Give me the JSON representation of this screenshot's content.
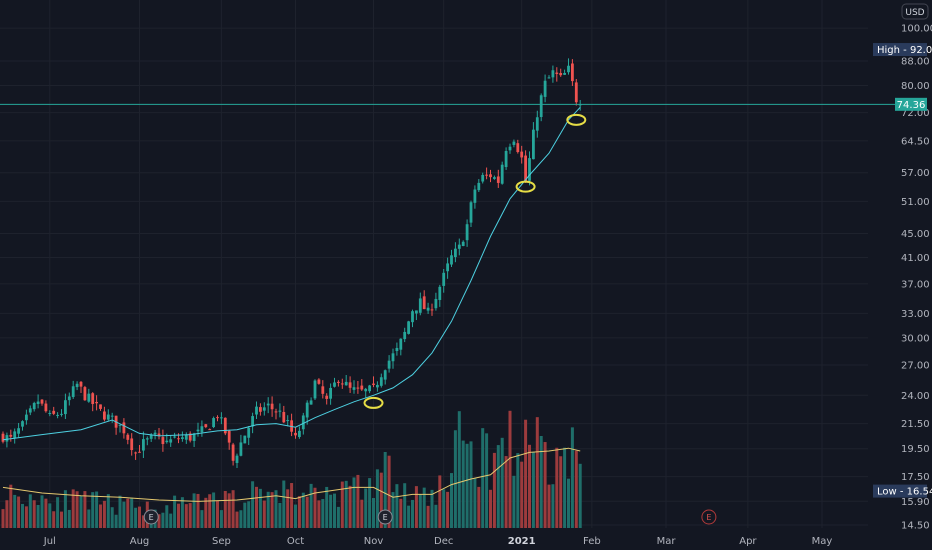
{
  "chart_data": {
    "type": "candlestick",
    "currency": "USD",
    "y_scale": "log",
    "ylim": [
      14.0,
      104.0
    ],
    "y_ticks": [
      "100.00",
      "88.00",
      "80.00",
      "72.00",
      "64.50",
      "57.00",
      "51.00",
      "45.00",
      "41.00",
      "37.00",
      "33.00",
      "30.00",
      "27.00",
      "24.00",
      "21.50",
      "19.50",
      "17.50",
      "15.90",
      "14.50"
    ],
    "x_ticks": [
      {
        "label": "Jul",
        "bar": 12
      },
      {
        "label": "Aug",
        "bar": 35
      },
      {
        "label": "Sep",
        "bar": 56
      },
      {
        "label": "Oct",
        "bar": 75
      },
      {
        "label": "Nov",
        "bar": 95
      },
      {
        "label": "Dec",
        "bar": 113
      },
      {
        "label": "2021",
        "bar": 133,
        "bold": true
      },
      {
        "label": "Feb",
        "bar": 151
      },
      {
        "label": "Mar",
        "bar": 170
      },
      {
        "label": "Apr",
        "bar": 191
      },
      {
        "label": "May",
        "bar": 210
      }
    ],
    "high_label": "High",
    "high_value": "92.00",
    "low_label": "Low",
    "low_value": "16.54",
    "last_price": "74.36",
    "earnings_label": "E",
    "earnings_bars": [
      38,
      98,
      181
    ],
    "moving_average": {
      "color": "#4dd0e1",
      "points": [
        [
          0,
          20.2
        ],
        [
          10,
          20.6
        ],
        [
          20,
          21.0
        ],
        [
          28,
          21.8
        ],
        [
          35,
          20.7
        ],
        [
          40,
          20.5
        ],
        [
          48,
          20.6
        ],
        [
          55,
          20.9
        ],
        [
          60,
          21.0
        ],
        [
          65,
          21.4
        ],
        [
          70,
          21.5
        ],
        [
          75,
          21.2
        ],
        [
          80,
          22.0
        ],
        [
          85,
          22.7
        ],
        [
          90,
          23.4
        ],
        [
          95,
          24.0
        ],
        [
          100,
          24.7
        ],
        [
          105,
          26.0
        ],
        [
          110,
          28.3
        ],
        [
          115,
          32.0
        ],
        [
          120,
          37.5
        ],
        [
          125,
          44.5
        ],
        [
          130,
          51.5
        ],
        [
          135,
          56.5
        ],
        [
          140,
          61.5
        ],
        [
          145,
          70.0
        ],
        [
          148,
          73.5
        ]
      ]
    },
    "volume_average": {
      "color": "#e6c96f",
      "points": [
        [
          0,
          0.29
        ],
        [
          10,
          0.25
        ],
        [
          20,
          0.23
        ],
        [
          30,
          0.22
        ],
        [
          40,
          0.2
        ],
        [
          50,
          0.19
        ],
        [
          60,
          0.2
        ],
        [
          70,
          0.23
        ],
        [
          75,
          0.21
        ],
        [
          80,
          0.25
        ],
        [
          90,
          0.29
        ],
        [
          95,
          0.29
        ],
        [
          100,
          0.22
        ],
        [
          105,
          0.24
        ],
        [
          110,
          0.24
        ],
        [
          115,
          0.31
        ],
        [
          120,
          0.35
        ],
        [
          125,
          0.38
        ],
        [
          130,
          0.5
        ],
        [
          135,
          0.54
        ],
        [
          140,
          0.55
        ],
        [
          145,
          0.57
        ],
        [
          148,
          0.55
        ]
      ]
    },
    "highlight_color": "#e6dd46",
    "highlights": [
      {
        "bar": 95,
        "price": 23.3
      },
      {
        "bar": 134,
        "price": 54.0
      },
      {
        "bar": 147,
        "price": 70.0
      }
    ],
    "colors": {
      "up": "#26a69a",
      "down": "#ef5350",
      "vol_up": "#1f6e6a",
      "vol_down": "#9c3b3d",
      "grid": "#1e222d",
      "last": "#26a69a",
      "high_low": "#2a3b5c"
    },
    "anchors": [
      [
        0,
        20.5
      ],
      [
        2,
        20.2
      ],
      [
        5,
        21.3
      ],
      [
        9,
        23.5
      ],
      [
        12,
        22.0
      ],
      [
        15,
        22.5
      ],
      [
        19,
        25.0
      ],
      [
        21,
        24.0
      ],
      [
        25,
        22.5
      ],
      [
        28,
        21.8
      ],
      [
        31,
        21.0
      ],
      [
        34,
        19.2
      ],
      [
        36,
        19.9
      ],
      [
        39,
        20.4
      ],
      [
        42,
        20.0
      ],
      [
        45,
        20.3
      ],
      [
        48,
        20.4
      ],
      [
        52,
        21.0
      ],
      [
        55,
        22.3
      ],
      [
        57,
        20.8
      ],
      [
        59,
        18.6
      ],
      [
        62,
        20.6
      ],
      [
        65,
        22.5
      ],
      [
        68,
        23.0
      ],
      [
        71,
        22.4
      ],
      [
        73,
        21.4
      ],
      [
        75,
        20.2
      ],
      [
        77,
        21.8
      ],
      [
        80,
        25.2
      ],
      [
        83,
        23.4
      ],
      [
        86,
        25.8
      ],
      [
        89,
        24.5
      ],
      [
        92,
        24.3
      ],
      [
        95,
        24.5
      ],
      [
        98,
        27.0
      ],
      [
        101,
        28.5
      ],
      [
        103,
        30.5
      ],
      [
        105,
        33.5
      ],
      [
        107,
        34.4
      ],
      [
        109,
        33.0
      ],
      [
        111,
        35.3
      ],
      [
        113,
        38.0
      ],
      [
        115,
        41.0
      ],
      [
        117,
        42.5
      ],
      [
        119,
        46.5
      ],
      [
        121,
        53.5
      ],
      [
        123,
        56.0
      ],
      [
        125,
        56.5
      ],
      [
        127,
        55.2
      ],
      [
        129,
        63.0
      ],
      [
        131,
        65.5
      ],
      [
        133,
        60.2
      ],
      [
        134,
        55.0
      ],
      [
        135,
        60.0
      ],
      [
        137,
        72.0
      ],
      [
        139,
        80.5
      ],
      [
        141,
        84.0
      ],
      [
        143,
        82.0
      ],
      [
        145,
        85.0
      ],
      [
        147,
        76.0
      ],
      [
        148,
        74.36
      ]
    ],
    "volume_peaks": [
      [
        0,
        0.3
      ],
      [
        20,
        0.24
      ],
      [
        38,
        0.18
      ],
      [
        60,
        0.26
      ],
      [
        70,
        0.34
      ],
      [
        80,
        0.3
      ],
      [
        95,
        0.37
      ],
      [
        98,
        0.7
      ],
      [
        100,
        0.3
      ],
      [
        110,
        0.28
      ],
      [
        115,
        0.48
      ],
      [
        118,
        0.88
      ],
      [
        120,
        0.66
      ],
      [
        125,
        0.6
      ],
      [
        128,
        0.8
      ],
      [
        130,
        0.83
      ],
      [
        133,
        0.68
      ],
      [
        135,
        0.76
      ],
      [
        137,
        0.9
      ],
      [
        140,
        0.57
      ],
      [
        143,
        0.64
      ],
      [
        146,
        0.68
      ],
      [
        148,
        0.62
      ]
    ]
  }
}
